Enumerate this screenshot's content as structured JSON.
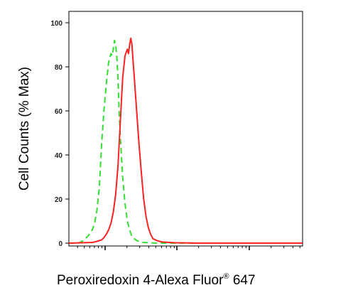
{
  "chart_data": {
    "type": "line",
    "title": "",
    "xlabel": "Peroxiredoxin 4-Alexa Fluor",
    "xlabel_superscript": "®",
    "xlabel_suffix": " 647",
    "ylabel": "Cell Counts (% Max)",
    "x_scale": "log",
    "xlim": [
      0,
      100
    ],
    "ylim": [
      0,
      105
    ],
    "y_ticks": [
      0,
      20,
      40,
      60,
      80,
      100
    ],
    "y_tick_labels": [
      "0",
      "20",
      "40",
      "60",
      "80",
      "100"
    ],
    "grid": false,
    "legend": "none",
    "series": [
      {
        "color": "#33dd33",
        "line_style": "dashed",
        "x": [
          0,
          4,
          6,
          8,
          10,
          11,
          12,
          13,
          14,
          15,
          16,
          17,
          18,
          18.5,
          19,
          19.5,
          20,
          20.5,
          21,
          21.5,
          22,
          23,
          24,
          25,
          26,
          27,
          28,
          29,
          30,
          31,
          32,
          34,
          36,
          40,
          50,
          70,
          100
        ],
        "y": [
          0,
          0,
          1,
          3,
          6,
          9,
          15,
          25,
          45,
          60,
          72,
          82,
          86,
          85,
          88,
          92,
          90,
          85,
          75,
          60,
          48,
          30,
          18,
          10,
          6,
          3,
          2,
          1.2,
          0.8,
          0.5,
          0.3,
          0.2,
          0.1,
          0,
          0,
          0,
          0
        ]
      },
      {
        "color": "#ff2222",
        "line_style": "solid",
        "x": [
          0,
          10,
          12,
          14,
          15,
          16,
          17,
          18,
          19,
          20,
          21,
          22,
          23,
          24,
          25,
          25.5,
          26,
          26.5,
          27,
          27.5,
          28,
          29,
          30,
          31,
          32,
          33,
          34,
          35,
          36,
          38,
          40,
          45,
          55,
          70,
          100
        ],
        "y": [
          0,
          0.3,
          0.8,
          1.5,
          2.5,
          4,
          6,
          9,
          14,
          22,
          35,
          55,
          75,
          85,
          88,
          86,
          90,
          93,
          90,
          82,
          75,
          60,
          45,
          32,
          20,
          12,
          7,
          4,
          2,
          1,
          0.5,
          0.2,
          0,
          0,
          0
        ]
      }
    ]
  }
}
